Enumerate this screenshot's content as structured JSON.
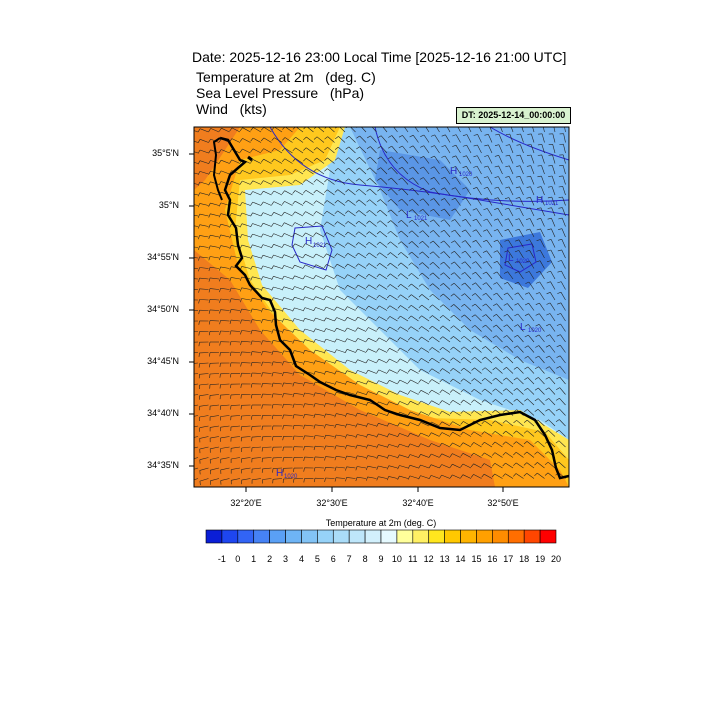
{
  "header": {
    "title": "Date: 2025-12-16  23:00 Local Time [2025-12-16  21:00 UTC]",
    "line1": "Temperature at 2m   (deg. C)",
    "line2": "Sea Level Pressure   (hPa)",
    "line3": "Wind   (kts)",
    "dt_label": "DT: 2025-12-14_00:00:00"
  },
  "axes": {
    "lat_labels": [
      "35°5'N",
      "35°N",
      "34°55'N",
      "34°50'N",
      "34°45'N",
      "34°40'N",
      "34°35'N"
    ],
    "lon_labels": [
      "32°20'E",
      "32°30'E",
      "32°40'E",
      "32°50'E"
    ]
  },
  "pressure_labels": [
    {
      "letter": "H",
      "value": "1020"
    },
    {
      "letter": "H",
      "value": "1021"
    },
    {
      "letter": "L",
      "value": "1021"
    },
    {
      "letter": "H",
      "value": "1021"
    },
    {
      "letter": "L",
      "value": "1020"
    },
    {
      "letter": "L",
      "value": "1020"
    },
    {
      "letter": "H",
      "value": "1020"
    }
  ],
  "colorbar": {
    "title": "Temperature at 2m  (deg. C)",
    "labels": [
      "-1",
      "0",
      "1",
      "2",
      "3",
      "4",
      "5",
      "6",
      "7",
      "8",
      "9",
      "10",
      "11",
      "12",
      "13",
      "14",
      "15",
      "16",
      "17",
      "18",
      "19",
      "20"
    ],
    "colors": [
      "#0a1ed6",
      "#1e46f0",
      "#3264f5",
      "#4682f5",
      "#5aa0f5",
      "#6eb4f5",
      "#82c3f5",
      "#96d2f8",
      "#aadcf8",
      "#bee6fa",
      "#d2f0fc",
      "#e6faff",
      "#ffff9b",
      "#fff064",
      "#ffe61e",
      "#ffc800",
      "#ffb400",
      "#ffa000",
      "#ff8c00",
      "#ff6e00",
      "#ff4600",
      "#ff0000"
    ]
  },
  "map_colors": {
    "warm_dark": "#f07d1e",
    "warm": "#ffa014",
    "warm_light": "#ffc81e",
    "yellow": "#ffe650",
    "cool_light": "#c8f0fa",
    "cool": "#96d2f8",
    "cool_mid": "#78b4f0",
    "cool_dark": "#5a96e6",
    "isobar": "#2828c8",
    "coast": "#000000"
  }
}
